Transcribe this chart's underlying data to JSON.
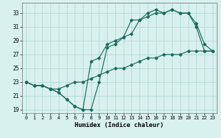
{
  "xlabel": "Humidex (Indice chaleur)",
  "bg_color": "#d8f0ee",
  "grid_color": "#b0d8d4",
  "line_color": "#1a6b60",
  "xlim": [
    -0.5,
    23.5
  ],
  "ylim": [
    18.5,
    34.5
  ],
  "xticks": [
    0,
    1,
    2,
    3,
    4,
    5,
    6,
    7,
    8,
    9,
    10,
    11,
    12,
    13,
    14,
    15,
    16,
    17,
    18,
    19,
    20,
    21,
    22,
    23
  ],
  "yticks": [
    19,
    21,
    23,
    25,
    27,
    29,
    31,
    33
  ],
  "line1_x": [
    0,
    1,
    2,
    3,
    4,
    5,
    6,
    7,
    8,
    9,
    10,
    11,
    12,
    13,
    14,
    15,
    16,
    17,
    18,
    19,
    20,
    21,
    22,
    23
  ],
  "line1_y": [
    23,
    22.5,
    22.5,
    22,
    21.5,
    20.5,
    19.5,
    19,
    19,
    23,
    28,
    28.5,
    29.5,
    32,
    32,
    33,
    33.5,
    33,
    33.5,
    33,
    33,
    31,
    27.5,
    27.5
  ],
  "line2_x": [
    0,
    1,
    2,
    3,
    4,
    5,
    6,
    7,
    8,
    9,
    10,
    11,
    12,
    13,
    14,
    15,
    16,
    17,
    18,
    19,
    20,
    21,
    22,
    23
  ],
  "line2_y": [
    23,
    22.5,
    22.5,
    22,
    21.5,
    20.5,
    19.5,
    19,
    26,
    26.5,
    28.5,
    29,
    29.5,
    30,
    32,
    32.5,
    33,
    33,
    33.5,
    33,
    33,
    31.5,
    28.5,
    27.5
  ],
  "line3_x": [
    0,
    1,
    2,
    3,
    4,
    5,
    6,
    7,
    8,
    9,
    10,
    11,
    12,
    13,
    14,
    15,
    16,
    17,
    18,
    19,
    20,
    21,
    22,
    23
  ],
  "line3_y": [
    23,
    22.5,
    22.5,
    22,
    22,
    22.5,
    23,
    23,
    23.5,
    24,
    24.5,
    25,
    25,
    25.5,
    26,
    26.5,
    26.5,
    27,
    27,
    27,
    27.5,
    27.5,
    27.5,
    27.5
  ]
}
